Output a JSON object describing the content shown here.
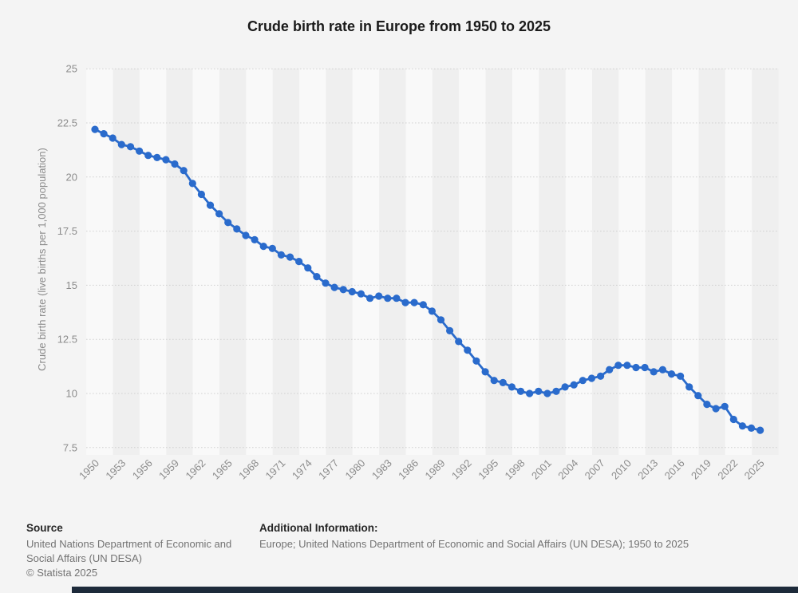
{
  "title": "Crude birth rate in Europe from 1950 to 2025",
  "colors": {
    "background": "#f4f4f4",
    "band_light": "#f9f9f9",
    "band_dark": "#efefef",
    "line": "#2a6bcc",
    "grid": "#c9c9c9",
    "axis_text": "#8c8c8c",
    "title_text": "#1a1a1a",
    "footer_heading": "#262626",
    "footer_text": "#737373",
    "bottom_bar": "#1d2a3a"
  },
  "y_axis": {
    "label": "Crude birth rate (live births per 1,000 population)",
    "tick_labels": [
      "25",
      "22.5",
      "20",
      "17.5",
      "15",
      "12.5",
      "10",
      "7.5"
    ],
    "tick_values": [
      25,
      22.5,
      20,
      17.5,
      15,
      12.5,
      10,
      7.5
    ]
  },
  "x_axis": {
    "tick_labels": [
      "1950",
      "1953",
      "1956",
      "1959",
      "1962",
      "1965",
      "1968",
      "1971",
      "1974",
      "1977",
      "1980",
      "1983",
      "1986",
      "1989",
      "1992",
      "1995",
      "1998",
      "2001",
      "2004",
      "2007",
      "2010",
      "2013",
      "2016",
      "2019",
      "2022",
      "2025"
    ]
  },
  "chart_data": {
    "type": "line",
    "title": "Crude birth rate in Europe from 1950 to 2025",
    "xlabel": "",
    "ylabel": "Crude birth rate (live births per 1,000 population)",
    "ylim": [
      7.5,
      25
    ],
    "xlim": [
      1950,
      2025
    ],
    "grid": "horizontal-dotted",
    "legend": "none",
    "marker": "circle",
    "x": [
      1950,
      1951,
      1952,
      1953,
      1954,
      1955,
      1956,
      1957,
      1958,
      1959,
      1960,
      1961,
      1962,
      1963,
      1964,
      1965,
      1966,
      1967,
      1968,
      1969,
      1970,
      1971,
      1972,
      1973,
      1974,
      1975,
      1976,
      1977,
      1978,
      1979,
      1980,
      1981,
      1982,
      1983,
      1984,
      1985,
      1986,
      1987,
      1988,
      1989,
      1990,
      1991,
      1992,
      1993,
      1994,
      1995,
      1996,
      1997,
      1998,
      1999,
      2000,
      2001,
      2002,
      2003,
      2004,
      2005,
      2006,
      2007,
      2008,
      2009,
      2010,
      2011,
      2012,
      2013,
      2014,
      2015,
      2016,
      2017,
      2018,
      2019,
      2020,
      2021,
      2022,
      2023,
      2024,
      2025
    ],
    "values": [
      22.2,
      22.0,
      21.8,
      21.5,
      21.4,
      21.2,
      21.0,
      20.9,
      20.8,
      20.6,
      20.3,
      19.7,
      19.2,
      18.7,
      18.3,
      17.9,
      17.6,
      17.3,
      17.1,
      16.8,
      16.7,
      16.4,
      16.3,
      16.1,
      15.8,
      15.4,
      15.1,
      14.9,
      14.8,
      14.7,
      14.6,
      14.4,
      14.5,
      14.4,
      14.4,
      14.2,
      14.2,
      14.1,
      13.8,
      13.4,
      12.9,
      12.4,
      12.0,
      11.5,
      11.0,
      10.6,
      10.5,
      10.3,
      10.1,
      10.0,
      10.1,
      10.0,
      10.1,
      10.3,
      10.4,
      10.6,
      10.7,
      10.8,
      11.1,
      11.3,
      11.3,
      11.2,
      11.2,
      11.0,
      11.1,
      10.9,
      10.8,
      10.3,
      9.9,
      9.5,
      9.3,
      9.4,
      8.8,
      8.5,
      8.4,
      8.3
    ]
  },
  "footer": {
    "source_heading": "Source",
    "source_text": "United Nations Department of Economic and Social Affairs (UN DESA)",
    "copyright": "© Statista 2025",
    "additional_heading": "Additional Information:",
    "additional_text": "Europe; United Nations Department of Economic and Social Affairs (UN DESA); 1950 to 2025"
  }
}
